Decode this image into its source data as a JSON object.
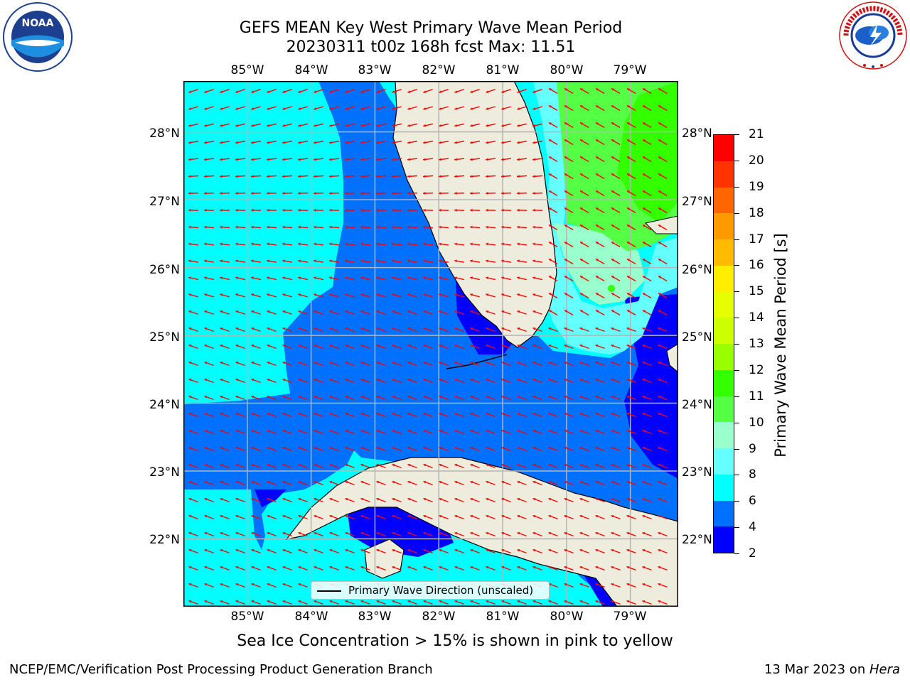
{
  "header": {
    "title_line1": "GEFS MEAN Key West Primary Wave Mean Period",
    "title_line2": "20230311 t00z 168h fcst   Max: 11.51"
  },
  "logos": {
    "left": {
      "name": "noaa-logo",
      "text": "NOAA",
      "ring_text": "NATIONAL OCEANIC AND ATMOSPHERIC ADMINISTRATION · U.S. DEPARTMENT OF COMMERCE"
    },
    "right": {
      "name": "nws-logo",
      "ring_text": "NATIONAL WEATHER SERVICE"
    }
  },
  "map": {
    "lon_ticks": [
      "85°W",
      "84°W",
      "83°W",
      "82°W",
      "81°W",
      "80°W",
      "79°W"
    ],
    "lat_ticks": [
      "28°N",
      "27°N",
      "26°N",
      "25°N",
      "24°N",
      "23°N",
      "22°N"
    ],
    "lon_range": [
      -86.0,
      -78.25
    ],
    "lat_range": [
      21.0,
      28.75
    ],
    "colors": {
      "land": "#eeecdc",
      "vector": "#ff0000",
      "grid": "#b5b5b5",
      "coast": "#000000"
    },
    "legend_label": "Primary Wave Direction (unscaled)",
    "vector_direction": "mostly westward (toward west / west-northwest)"
  },
  "colorbar": {
    "label": "Primary Wave Mean Period [s]",
    "ticks": [
      "21",
      "20",
      "19",
      "18",
      "17",
      "16",
      "15",
      "14",
      "13",
      "12",
      "11",
      "10",
      "9",
      "8",
      "6",
      "4",
      "2"
    ],
    "colors_top_to_bottom": [
      "#ff0000",
      "#ff3300",
      "#ff6600",
      "#ff9900",
      "#ffbb00",
      "#ffee00",
      "#e6ff00",
      "#ccff00",
      "#99ff00",
      "#33ff00",
      "#55ff44",
      "#99ffcc",
      "#66ffff",
      "#00ffff",
      "#0070ff",
      "#0000ff"
    ]
  },
  "footer": {
    "sea_ice_note": "Sea Ice Concentration > 15% is shown in pink to yellow",
    "left": "NCEP/EMC/Verification Post Processing Product Generation Branch",
    "right_prefix": "13 Mar 2023 on ",
    "right_machine": "Hera"
  }
}
